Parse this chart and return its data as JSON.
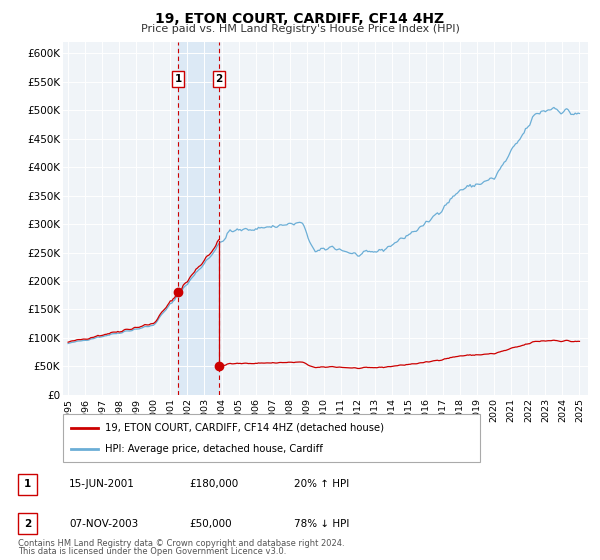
{
  "title": "19, ETON COURT, CARDIFF, CF14 4HZ",
  "subtitle": "Price paid vs. HM Land Registry's House Price Index (HPI)",
  "ylim": [
    0,
    620000
  ],
  "yticks": [
    0,
    50000,
    100000,
    150000,
    200000,
    250000,
    300000,
    350000,
    400000,
    450000,
    500000,
    550000,
    600000
  ],
  "ytick_labels": [
    "£0",
    "£50K",
    "£100K",
    "£150K",
    "£200K",
    "£250K",
    "£300K",
    "£350K",
    "£400K",
    "£450K",
    "£500K",
    "£550K",
    "£600K"
  ],
  "xlim_start": 1994.7,
  "xlim_end": 2025.5,
  "xticks": [
    1995,
    1996,
    1997,
    1998,
    1999,
    2000,
    2001,
    2002,
    2003,
    2004,
    2005,
    2006,
    2007,
    2008,
    2009,
    2010,
    2011,
    2012,
    2013,
    2014,
    2015,
    2016,
    2017,
    2018,
    2019,
    2020,
    2021,
    2022,
    2023,
    2024,
    2025
  ],
  "hpi_color": "#6baed6",
  "price_color": "#cc0000",
  "shaded_color": "#dce9f5",
  "event1_x": 2001.46,
  "event1_y": 180000,
  "event2_x": 2003.85,
  "event2_y": 50000,
  "legend_price_label": "19, ETON COURT, CARDIFF, CF14 4HZ (detached house)",
  "legend_hpi_label": "HPI: Average price, detached house, Cardiff",
  "footnote1": "Contains HM Land Registry data © Crown copyright and database right 2024.",
  "footnote2": "This data is licensed under the Open Government Licence v3.0.",
  "table_row1": [
    "1",
    "15-JUN-2001",
    "£180,000",
    "20% ↑ HPI"
  ],
  "table_row2": [
    "2",
    "07-NOV-2003",
    "£50,000",
    "78% ↓ HPI"
  ],
  "bg_color": "#f0f4f8",
  "grid_color": "white"
}
